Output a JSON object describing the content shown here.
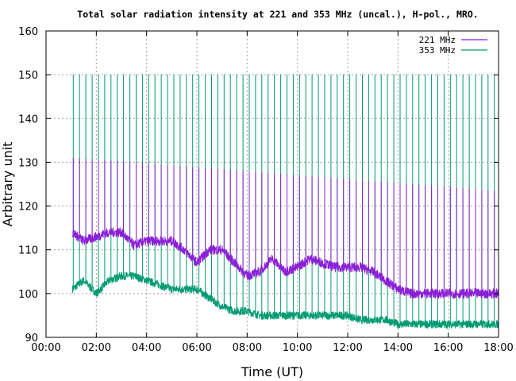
{
  "chart_data": {
    "type": "line",
    "title": "Total solar radiation intensity at 221 and 353 MHz (uncal.), H-pol., MRO.",
    "xlabel": "Time (UT)",
    "ylabel": "Arbitrary unit",
    "xlim": [
      "00:00",
      "18:00"
    ],
    "ylim": [
      90,
      160
    ],
    "x_ticks": [
      "00:00",
      "02:00",
      "04:00",
      "06:00",
      "08:00",
      "10:00",
      "12:00",
      "14:00",
      "16:00",
      "18:00"
    ],
    "y_ticks": [
      90,
      100,
      110,
      120,
      130,
      140,
      150,
      160
    ],
    "grid": true,
    "legend_position": "top-right",
    "series": [
      {
        "name": "221 MHz",
        "color": "#8b1fd6",
        "x": [
          "01:03",
          "01:30",
          "02:00",
          "02:30",
          "03:00",
          "03:30",
          "04:00",
          "04:30",
          "05:00",
          "05:30",
          "06:00",
          "06:30",
          "07:00",
          "07:30",
          "08:00",
          "08:30",
          "09:00",
          "09:30",
          "10:00",
          "10:30",
          "11:00",
          "11:30",
          "12:00",
          "12:30",
          "13:00",
          "13:30",
          "14:00",
          "14:30",
          "15:00",
          "15:30",
          "16:00",
          "16:30",
          "17:00",
          "17:30",
          "18:00"
        ],
        "values": [
          114,
          112,
          113,
          114,
          114,
          111,
          112,
          112,
          112,
          110,
          107,
          110,
          110,
          107,
          104,
          105,
          108,
          105,
          106,
          108,
          107,
          106,
          106,
          106,
          105,
          103,
          101,
          100,
          100,
          100,
          100,
          100,
          100,
          100,
          100
        ]
      },
      {
        "name": "353 MHz",
        "color": "#009a72",
        "x": [
          "01:03",
          "01:30",
          "02:00",
          "02:30",
          "03:00",
          "03:30",
          "04:00",
          "04:30",
          "05:00",
          "05:30",
          "06:00",
          "06:30",
          "07:00",
          "07:30",
          "08:00",
          "08:30",
          "09:00",
          "09:30",
          "10:00",
          "10:30",
          "11:00",
          "11:30",
          "12:00",
          "12:30",
          "13:00",
          "13:30",
          "14:00",
          "14:30",
          "15:00",
          "15:30",
          "16:00",
          "16:30",
          "17:00",
          "17:30",
          "18:00"
        ],
        "values": [
          101,
          103,
          100,
          103,
          104,
          104,
          103,
          102,
          101,
          101,
          101,
          99,
          97,
          96,
          96,
          95,
          95,
          95,
          95,
          95,
          95,
          95,
          95,
          94,
          94,
          94,
          93,
          93,
          93,
          93,
          93,
          93,
          93,
          93,
          93
        ]
      }
    ],
    "calibration_spikes": {
      "start": "01:05",
      "interval_minutes": 15,
      "end": "17:50",
      "353_MHz_peak": 150,
      "221_MHz_peak": 131
    }
  }
}
